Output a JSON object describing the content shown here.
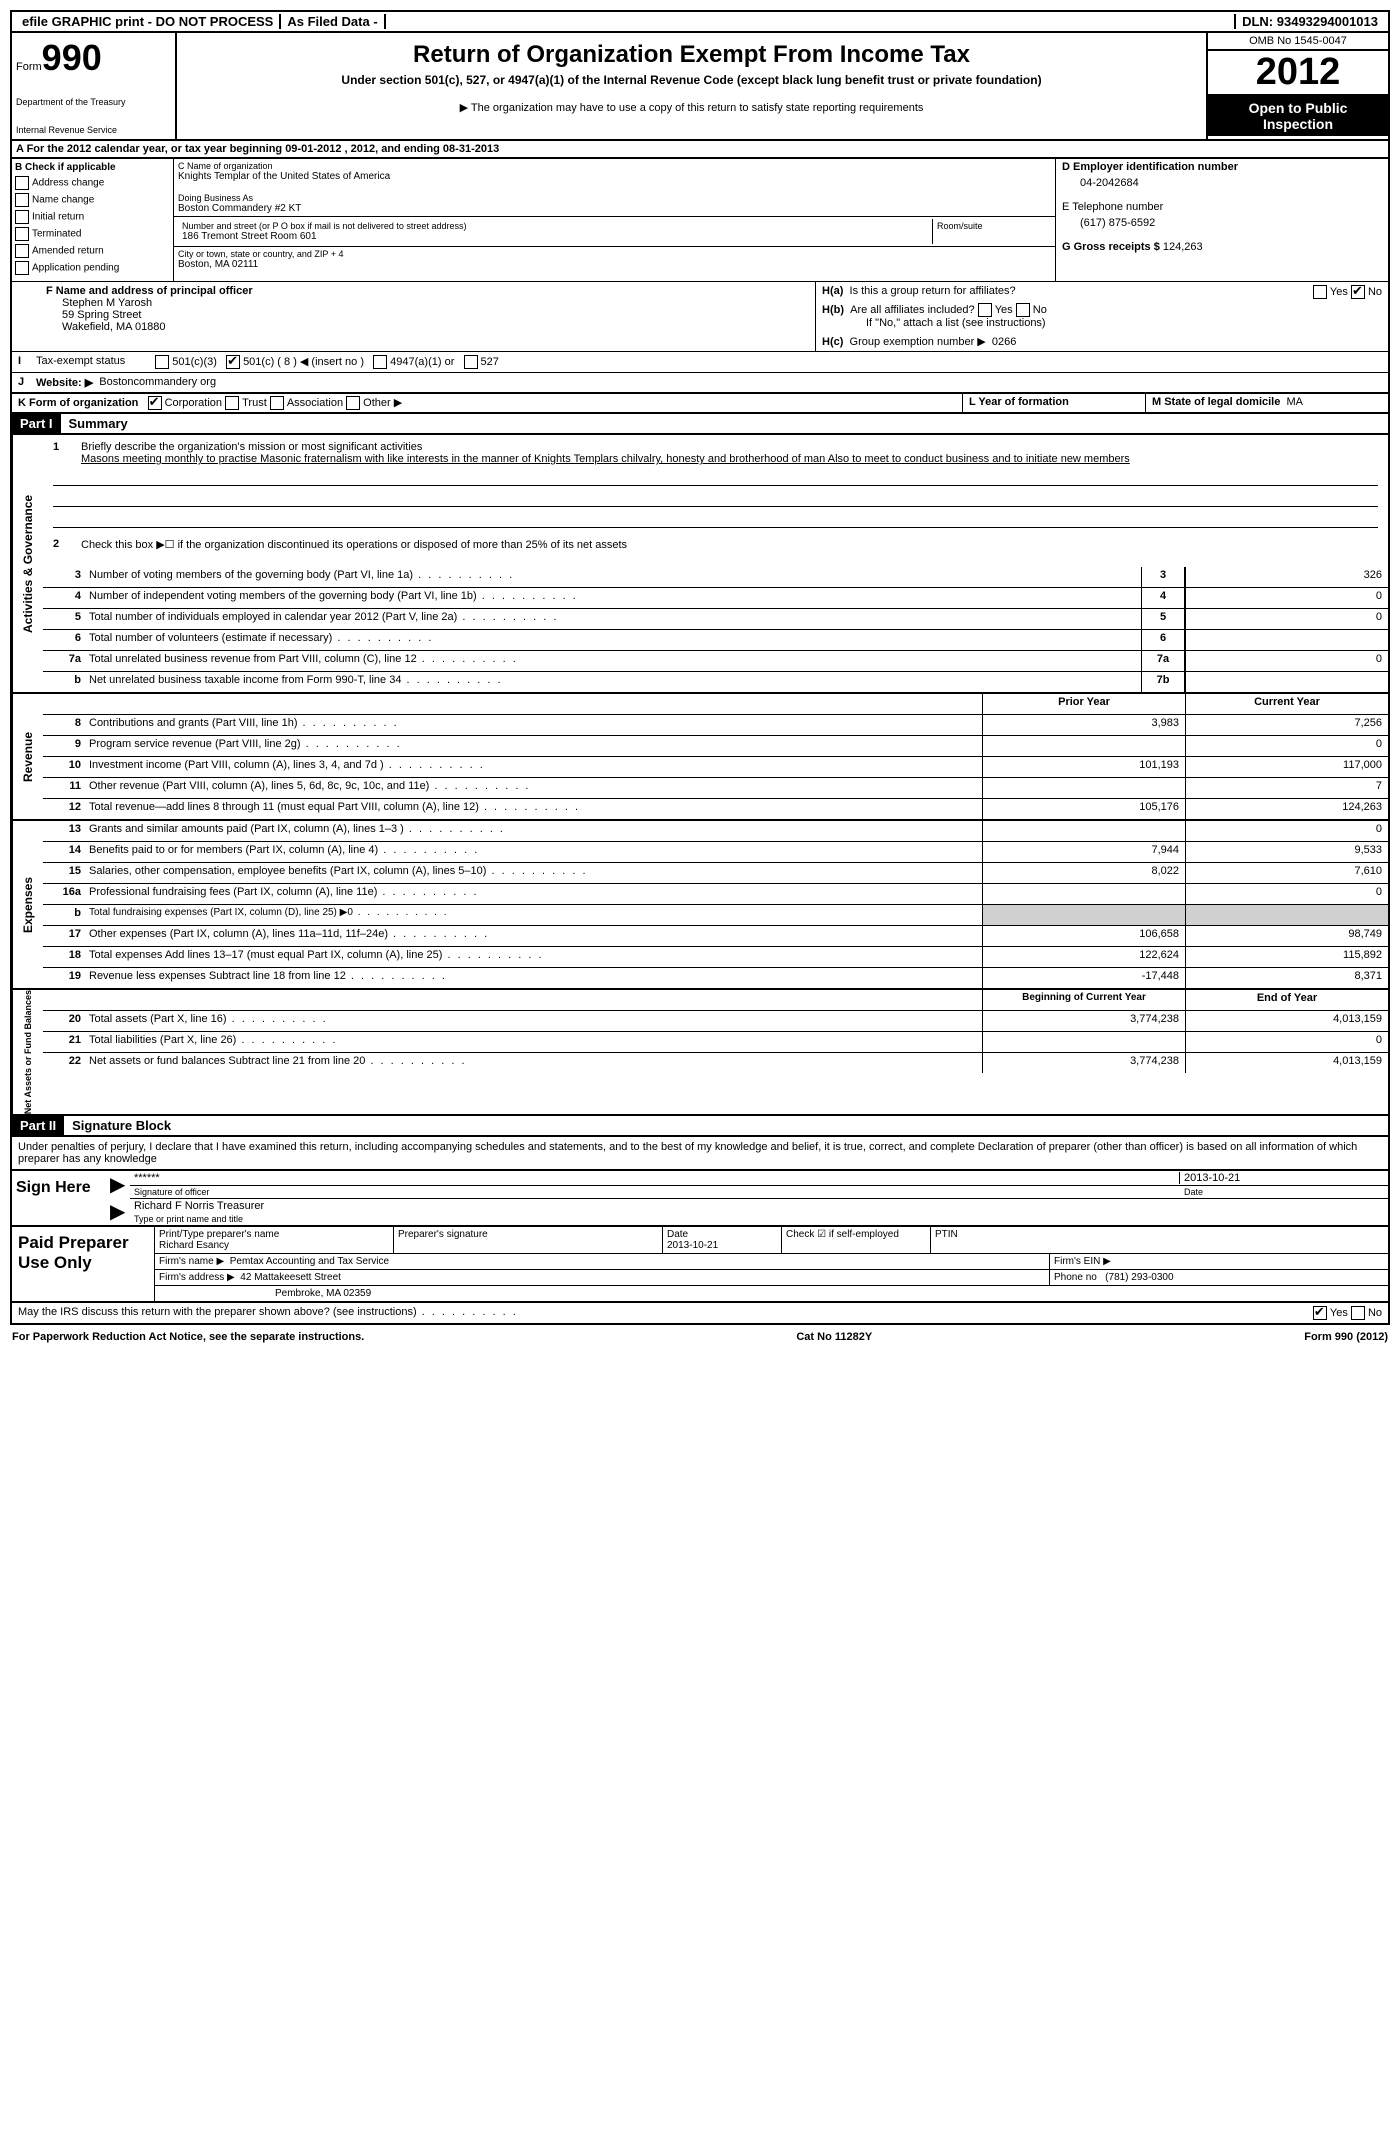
{
  "top_bar": {
    "efile": "efile GRAPHIC print - DO NOT PROCESS",
    "as_filed": "As Filed Data -",
    "dln_label": "DLN:",
    "dln": "93493294001013"
  },
  "header": {
    "form_word": "Form",
    "form_num": "990",
    "dept1": "Department of the Treasury",
    "dept2": "Internal Revenue Service",
    "title": "Return of Organization Exempt From Income Tax",
    "subtitle": "Under section 501(c), 527, or 4947(a)(1) of the Internal Revenue Code (except black lung benefit trust or private foundation)",
    "copy_note": "▶ The organization may have to use a copy of this return to satisfy state reporting requirements",
    "omb": "OMB No 1545-0047",
    "year": "2012",
    "open": "Open to Public Inspection"
  },
  "line_a": "A  For the 2012 calendar year, or tax year beginning 09-01-2012     , 2012, and ending 08-31-2013",
  "section_b": {
    "title": "B  Check if applicable",
    "items": [
      "Address change",
      "Name change",
      "Initial return",
      "Terminated",
      "Amended return",
      "Application pending"
    ]
  },
  "section_c": {
    "name_lbl": "C Name of organization",
    "name": "Knights Templar of the United States of America",
    "dba_lbl": "Doing Business As",
    "dba": "Boston Commandery #2 KT",
    "street_lbl": "Number and street (or P O  box if mail is not delivered to street address)",
    "street": "186 Tremont Street Room 601",
    "room_lbl": "Room/suite",
    "city_lbl": "City or town, state or country, and ZIP + 4",
    "city": "Boston, MA  02111"
  },
  "section_d": {
    "ein_lbl": "D Employer identification number",
    "ein": "04-2042684",
    "tel_lbl": "E Telephone number",
    "tel": "(617) 875-6592",
    "gross_lbl": "G Gross receipts $",
    "gross": "124,263"
  },
  "section_f": {
    "lbl": "F   Name and address of principal officer",
    "name": "Stephen M Yarosh",
    "street": "59 Spring Street",
    "city": "Wakefield, MA  01880"
  },
  "section_h": {
    "ha": "Is this a group return for affiliates?",
    "hb": "Are all affiliates included?",
    "hb_note": "If \"No,\" attach a list  (see instructions)",
    "hc": "Group exemption number ▶",
    "hc_val": "0266"
  },
  "row_i": {
    "lbl": "Tax-exempt status",
    "opts": [
      "501(c)(3)",
      "501(c) ( 8 ) ◀ (insert no )",
      "4947(a)(1) or",
      "527"
    ]
  },
  "row_j": {
    "lbl": "Website: ▶",
    "val": "Bostoncommandery org"
  },
  "row_k": {
    "k": "K Form of organization",
    "opts": [
      "Corporation",
      "Trust",
      "Association",
      "Other ▶"
    ],
    "l": "L Year of formation",
    "m": "M State of legal domicile",
    "m_val": "MA"
  },
  "part1": {
    "hdr": "Part I",
    "title": "Summary"
  },
  "mission": {
    "q1": "Briefly describe the organization's mission or most significant activities",
    "text": "Masons meeting monthly to practise Masonic fraternalism with like interests in the manner of Knights Templars chilvalry, honesty and brotherhood of man  Also to meet to conduct business and to initiate new members",
    "q2": "Check this box ▶☐ if the organization discontinued its operations or disposed of more than 25% of its net assets"
  },
  "gov_rows": [
    {
      "n": "3",
      "t": "Number of voting members of the governing body (Part VI, line 1a)",
      "box": "3",
      "v": "326"
    },
    {
      "n": "4",
      "t": "Number of independent voting members of the governing body (Part VI, line 1b)",
      "box": "4",
      "v": "0"
    },
    {
      "n": "5",
      "t": "Total number of individuals employed in calendar year 2012 (Part V, line 2a)",
      "box": "5",
      "v": "0"
    },
    {
      "n": "6",
      "t": "Total number of volunteers (estimate if necessary)",
      "box": "6",
      "v": ""
    },
    {
      "n": "7a",
      "t": "Total unrelated business revenue from Part VIII, column (C), line 12",
      "box": "7a",
      "v": "0"
    },
    {
      "n": "b",
      "t": "Net unrelated business taxable income from Form 990-T, line 34",
      "box": "7b",
      "v": ""
    }
  ],
  "py_cy_header": {
    "py": "Prior Year",
    "cy": "Current Year"
  },
  "revenue_rows": [
    {
      "n": "8",
      "t": "Contributions and grants (Part VIII, line 1h)",
      "py": "3,983",
      "cy": "7,256"
    },
    {
      "n": "9",
      "t": "Program service revenue (Part VIII, line 2g)",
      "py": "",
      "cy": "0"
    },
    {
      "n": "10",
      "t": "Investment income (Part VIII, column (A), lines 3, 4, and 7d )",
      "py": "101,193",
      "cy": "117,000"
    },
    {
      "n": "11",
      "t": "Other revenue (Part VIII, column (A), lines 5, 6d, 8c, 9c, 10c, and 11e)",
      "py": "",
      "cy": "7"
    },
    {
      "n": "12",
      "t": "Total revenue—add lines 8 through 11 (must equal Part VIII, column (A), line 12)",
      "py": "105,176",
      "cy": "124,263"
    }
  ],
  "expense_rows": [
    {
      "n": "13",
      "t": "Grants and similar amounts paid (Part IX, column (A), lines 1–3 )",
      "py": "",
      "cy": "0"
    },
    {
      "n": "14",
      "t": "Benefits paid to or for members (Part IX, column (A), line 4)",
      "py": "7,944",
      "cy": "9,533"
    },
    {
      "n": "15",
      "t": "Salaries, other compensation, employee benefits (Part IX, column (A), lines 5–10)",
      "py": "8,022",
      "cy": "7,610"
    },
    {
      "n": "16a",
      "t": "Professional fundraising fees (Part IX, column (A), line 11e)",
      "py": "",
      "cy": "0"
    },
    {
      "n": "b",
      "t": "Total fundraising expenses (Part IX, column (D), line 25) ▶0",
      "py": "",
      "cy": ""
    },
    {
      "n": "17",
      "t": "Other expenses (Part IX, column (A), lines 11a–11d, 11f–24e)",
      "py": "106,658",
      "cy": "98,749"
    },
    {
      "n": "18",
      "t": "Total expenses  Add lines 13–17 (must equal Part IX, column (A), line 25)",
      "py": "122,624",
      "cy": "115,892"
    },
    {
      "n": "19",
      "t": "Revenue less expenses  Subtract line 18 from line 12",
      "py": "-17,448",
      "cy": "8,371"
    }
  ],
  "na_header": {
    "boy": "Beginning of Current Year",
    "eoy": "End of Year"
  },
  "na_rows": [
    {
      "n": "20",
      "t": "Total assets (Part X, line 16)",
      "py": "3,774,238",
      "cy": "4,013,159"
    },
    {
      "n": "21",
      "t": "Total liabilities (Part X, line 26)",
      "py": "",
      "cy": "0"
    },
    {
      "n": "22",
      "t": "Net assets or fund balances  Subtract line 21 from line 20",
      "py": "3,774,238",
      "cy": "4,013,159"
    }
  ],
  "side_labels": {
    "gov": "Activities & Governance",
    "rev": "Revenue",
    "exp": "Expenses",
    "na": "Net Assets or Fund Balances"
  },
  "part2": {
    "hdr": "Part II",
    "title": "Signature Block"
  },
  "perjury": "Under penalties of perjury, I declare that I have examined this return, including accompanying schedules and statements, and to the best of my knowledge and belief, it is true, correct, and complete  Declaration of preparer (other than officer) is based on all information of which preparer has any knowledge",
  "sign": {
    "here": "Sign Here",
    "stars": "******",
    "date": "2013-10-21",
    "sig_lbl": "Signature of officer",
    "date_lbl": "Date",
    "name": "Richard F Norris Treasurer",
    "name_lbl": "Type or print name and title"
  },
  "paid": {
    "title": "Paid Preparer Use Only",
    "prep_name_lbl": "Print/Type preparer's name",
    "prep_name": "Richard Esancy",
    "prep_sig_lbl": "Preparer's signature",
    "date_lbl": "Date",
    "date": "2013-10-21",
    "self_lbl": "Check ☑ if self-employed",
    "ptin_lbl": "PTIN",
    "firm_name_lbl": "Firm's name    ▶",
    "firm_name": "Pemtax Accounting and Tax Service",
    "firm_ein_lbl": "Firm's EIN ▶",
    "firm_addr_lbl": "Firm's address ▶",
    "firm_addr1": "42 Mattakeesett Street",
    "firm_addr2": "Pembroke, MA  02359",
    "phone_lbl": "Phone no",
    "phone": "(781) 293-0300"
  },
  "discuss": "May the IRS discuss this return with the preparer shown above? (see instructions)",
  "footer": {
    "pra": "For Paperwork Reduction Act Notice, see the separate instructions.",
    "cat": "Cat No  11282Y",
    "form": "Form 990 (2012)"
  }
}
